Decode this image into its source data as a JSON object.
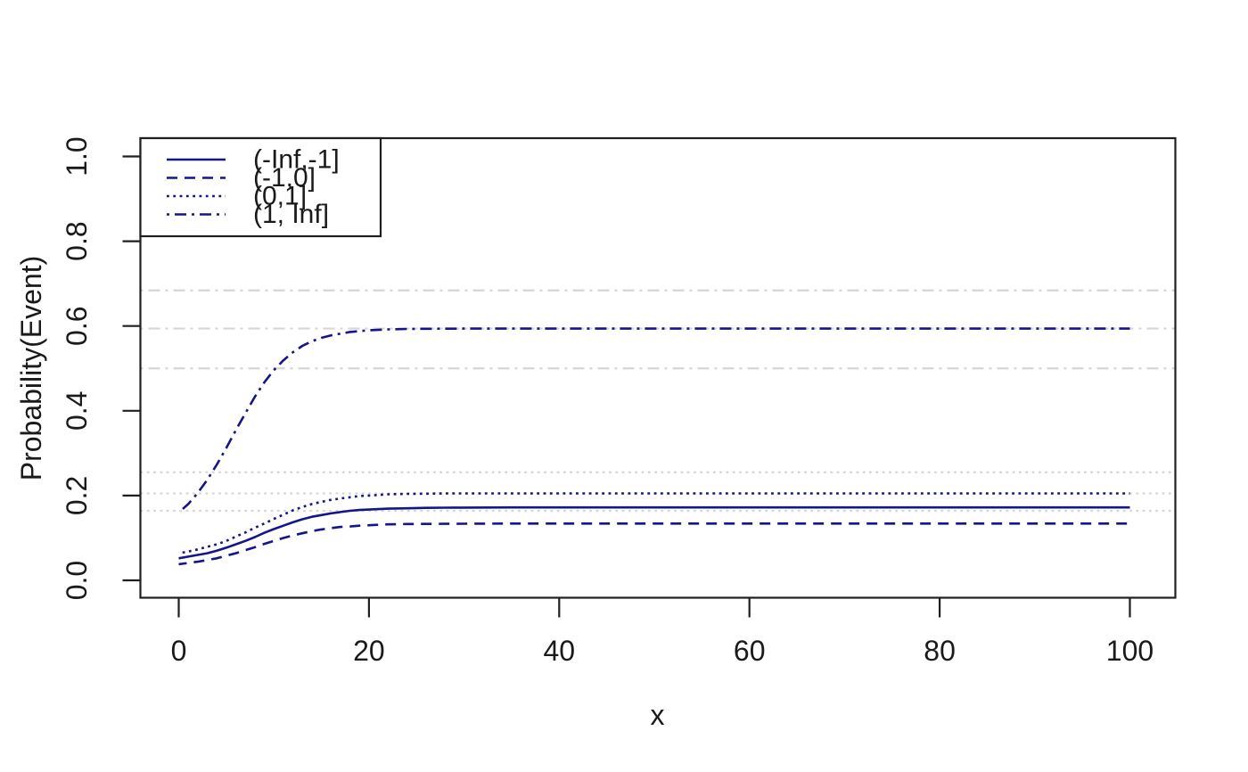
{
  "figure": {
    "background": "#ffffff",
    "axis_color": "#1f1f1f",
    "text_color": "#1a1a1a"
  },
  "chart_data": {
    "type": "line",
    "title": "",
    "xlabel": "x",
    "ylabel": "Probability(Event)",
    "xlim": [
      0,
      100
    ],
    "ylim": [
      0,
      1
    ],
    "grid": false,
    "x_ticks": [
      0,
      20,
      40,
      60,
      80,
      100
    ],
    "x_tick_labels": [
      "0",
      "20",
      "40",
      "60",
      "80",
      "100"
    ],
    "y_ticks": [
      0.0,
      0.2,
      0.4,
      0.6,
      0.8,
      1.0
    ],
    "y_tick_labels": [
      "0.0",
      "0.2",
      "0.4",
      "0.6",
      "0.8",
      "1.0"
    ],
    "x": [
      0,
      1,
      2,
      3,
      4,
      5,
      6,
      7,
      8,
      9,
      10,
      11,
      12,
      13,
      14,
      15,
      16,
      17,
      18,
      19,
      20,
      22,
      24,
      26,
      28,
      30,
      35,
      40,
      50,
      60,
      70,
      80,
      90,
      100
    ],
    "series": [
      {
        "name": "(-Inf,-1]",
        "linetype": "solid",
        "color": "#15158a",
        "values": [
          0.052,
          0.056,
          0.06,
          0.064,
          0.07,
          0.077,
          0.085,
          0.093,
          0.102,
          0.112,
          0.121,
          0.129,
          0.137,
          0.144,
          0.15,
          0.154,
          0.158,
          0.161,
          0.164,
          0.166,
          0.167,
          0.169,
          0.17,
          0.171,
          0.1715,
          0.1717,
          0.172,
          0.172,
          0.172,
          0.172,
          0.172,
          0.172,
          0.172,
          0.172
        ]
      },
      {
        "name": "(-1,0]",
        "linetype": "dashed",
        "color": "#15158a",
        "values": [
          0.038,
          0.041,
          0.044,
          0.048,
          0.052,
          0.058,
          0.064,
          0.071,
          0.078,
          0.086,
          0.093,
          0.1,
          0.106,
          0.111,
          0.116,
          0.12,
          0.123,
          0.126,
          0.127,
          0.129,
          0.13,
          0.132,
          0.133,
          0.1331,
          0.1334,
          0.1336,
          0.134,
          0.134,
          0.134,
          0.134,
          0.134,
          0.134,
          0.134,
          0.134
        ]
      },
      {
        "name": "(0,1]",
        "linetype": "dotted",
        "color": "#15158a",
        "values": [
          0.064,
          0.068,
          0.073,
          0.079,
          0.085,
          0.093,
          0.103,
          0.113,
          0.124,
          0.134,
          0.145,
          0.155,
          0.165,
          0.173,
          0.18,
          0.185,
          0.19,
          0.193,
          0.196,
          0.199,
          0.2,
          0.203,
          0.204,
          0.2045,
          0.205,
          0.205,
          0.205,
          0.205,
          0.205,
          0.205,
          0.205,
          0.205,
          0.205,
          0.205
        ]
      },
      {
        "name": "(1, Inf]",
        "linetype": "dashdot",
        "color": "#15158a",
        "values": [
          0.16,
          0.18,
          0.206,
          0.237,
          0.273,
          0.312,
          0.354,
          0.394,
          0.433,
          0.467,
          0.496,
          0.519,
          0.538,
          0.553,
          0.564,
          0.572,
          0.578,
          0.582,
          0.586,
          0.588,
          0.59,
          0.592,
          0.593,
          0.5934,
          0.5937,
          0.5939,
          0.594,
          0.594,
          0.594,
          0.594,
          0.594,
          0.594,
          0.594,
          0.594
        ]
      }
    ],
    "reference_lines": [
      {
        "y": 0.684,
        "linetype": "dashdot",
        "color": "#d6d6d6"
      },
      {
        "y": 0.594,
        "linetype": "dashdot",
        "color": "#d6d6d6"
      },
      {
        "y": 0.5,
        "linetype": "dashdot",
        "color": "#d6d6d6"
      },
      {
        "y": 0.255,
        "linetype": "dotted",
        "color": "#d6d6d6"
      },
      {
        "y": 0.205,
        "linetype": "dotted",
        "color": "#d6d6d6"
      },
      {
        "y": 0.164,
        "linetype": "dotted",
        "color": "#d6d6d6"
      }
    ],
    "legend": {
      "position": "topleft",
      "entries": [
        "(-Inf,-1]",
        "(-1,0]",
        "(0,1]",
        "(1, Inf]"
      ]
    }
  }
}
